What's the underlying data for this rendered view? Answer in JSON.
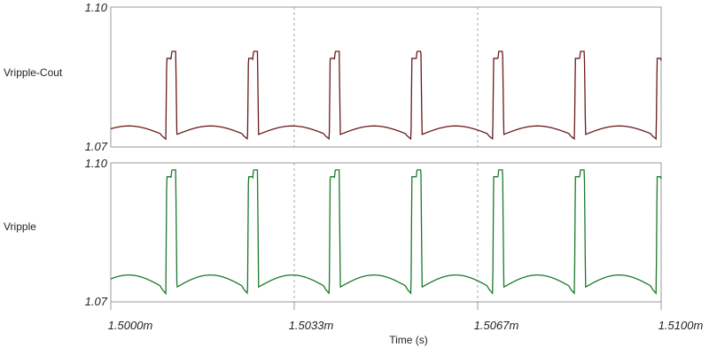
{
  "chart_data": {
    "type": "line",
    "xlabel": "Time (s)",
    "x_ticks": [
      "1.5000m",
      "1.5033m",
      "1.5067m",
      "1.5100m"
    ],
    "x_range": [
      0,
      1
    ],
    "y_range": [
      1.07,
      1.1
    ],
    "grid": "vertical-dashed",
    "panels": [
      {
        "name": "Vripple-Cout",
        "color": "#6b1a1a",
        "y_ticks": [
          "1.10",
          "1.07"
        ],
        "pulse_high": 1.089,
        "pulse_top": 1.0905,
        "base": 1.0745,
        "dip": 1.0717,
        "period": 0.1485,
        "phase": 0.1,
        "pulse_width": 0.02,
        "pulse_notch": 1.0885
      },
      {
        "name": "Vripple",
        "color": "#1a7a2a",
        "y_ticks": [
          "1.10",
          "1.07"
        ],
        "pulse_high": 1.097,
        "pulse_top": 1.0985,
        "base": 1.0758,
        "dip": 1.0718,
        "period": 0.1485,
        "phase": 0.1,
        "pulse_width": 0.02,
        "pulse_notch": 1.0965
      }
    ]
  }
}
